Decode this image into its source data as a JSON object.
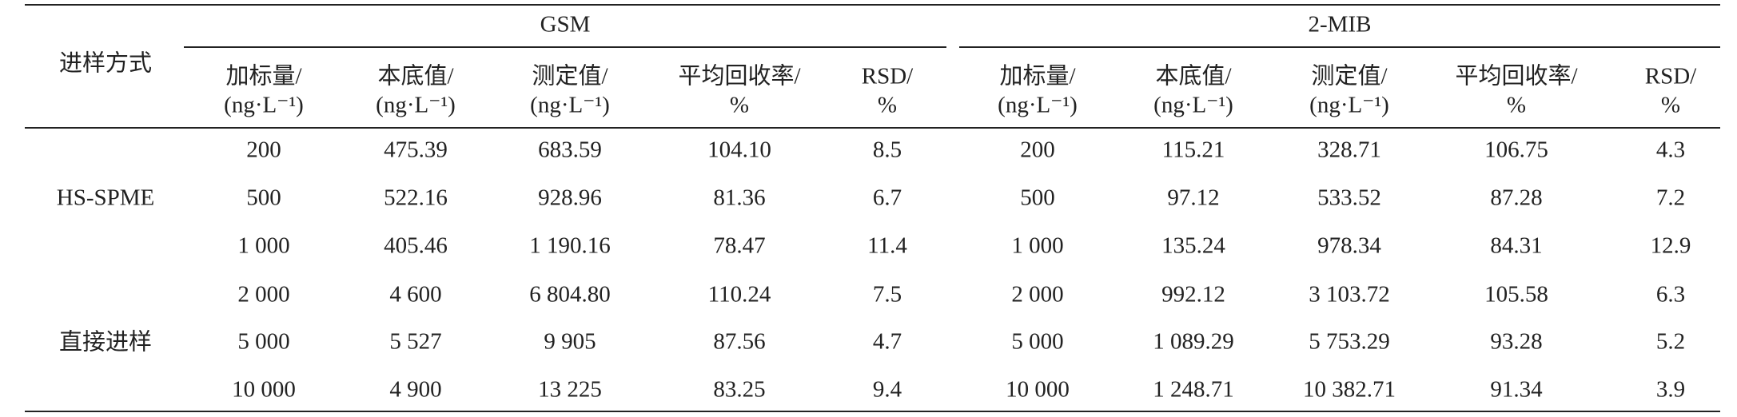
{
  "table": {
    "method_header": "进样方式",
    "groups": [
      {
        "name": "GSM",
        "columns": [
          [
            "加标量/",
            "(ng·L⁻¹)"
          ],
          [
            "本底值/",
            "(ng·L⁻¹)"
          ],
          [
            "测定值/",
            "(ng·L⁻¹)"
          ],
          [
            "平均回收率/",
            "%"
          ],
          [
            "RSD/",
            "%"
          ]
        ]
      },
      {
        "name": "2-MIB",
        "columns": [
          [
            "加标量/",
            "(ng·L⁻¹)"
          ],
          [
            "本底值/",
            "(ng·L⁻¹)"
          ],
          [
            "测定值/",
            "(ng·L⁻¹)"
          ],
          [
            "平均回收率/",
            "%"
          ],
          [
            "RSD/",
            "%"
          ]
        ]
      }
    ],
    "sections": [
      {
        "label": "HS-SPME",
        "rows": [
          [
            "200",
            "475.39",
            "683.59",
            "104.10",
            "8.5",
            "200",
            "115.21",
            "328.71",
            "106.75",
            "4.3"
          ],
          [
            "500",
            "522.16",
            "928.96",
            "81.36",
            "6.7",
            "500",
            "97.12",
            "533.52",
            "87.28",
            "7.2"
          ],
          [
            "1 000",
            "405.46",
            "1 190.16",
            "78.47",
            "11.4",
            "1 000",
            "135.24",
            "978.34",
            "84.31",
            "12.9"
          ]
        ]
      },
      {
        "label": "直接进样",
        "rows": [
          [
            "2 000",
            "4 600",
            "6 804.80",
            "110.24",
            "7.5",
            "2 000",
            "992.12",
            "3 103.72",
            "105.58",
            "6.3"
          ],
          [
            "5 000",
            "5 527",
            "9 905",
            "87.56",
            "4.7",
            "5 000",
            "1 089.29",
            "5 753.29",
            "93.28",
            "5.2"
          ],
          [
            "10 000",
            "4 900",
            "13 225",
            "83.25",
            "9.4",
            "10 000",
            "1 248.71",
            "10 382.71",
            "91.34",
            "3.9"
          ]
        ]
      }
    ]
  }
}
